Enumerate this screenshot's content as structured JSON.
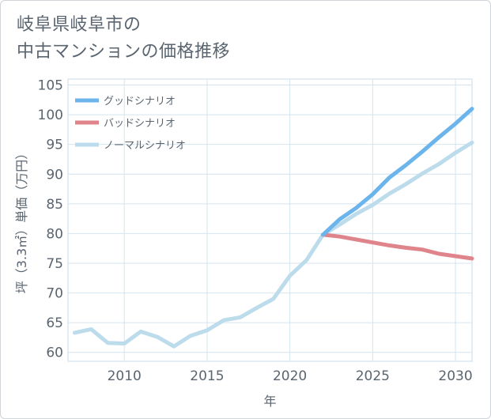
{
  "title_line1": "岐阜県岐阜市の",
  "title_line2": "中古マンションの価格推移",
  "chart_data": {
    "type": "line",
    "xlabel": "年",
    "ylabel": "坪（3.3㎡）単価（万円）",
    "xlim": [
      2006.6,
      2031
    ],
    "ylim": [
      58.5,
      106
    ],
    "xticks": [
      2010,
      2015,
      2020,
      2025,
      2030
    ],
    "yticks": [
      60,
      65,
      70,
      75,
      80,
      85,
      90,
      95,
      100,
      105
    ],
    "grid": true,
    "legend": "top-left",
    "series": [
      {
        "name": "グッドシナリオ",
        "color": "#6cb4ec",
        "x": [
          2022,
          2023,
          2024,
          2025,
          2026,
          2027,
          2028,
          2029,
          2030,
          2031
        ],
        "y": [
          79.8,
          82.4,
          84.3,
          86.6,
          89.4,
          91.5,
          93.8,
          96.2,
          98.5,
          101.0
        ]
      },
      {
        "name": "バッドシナリオ",
        "color": "#e0848c",
        "x": [
          2022,
          2023,
          2024,
          2025,
          2026,
          2027,
          2028,
          2029,
          2030,
          2031
        ],
        "y": [
          79.8,
          79.5,
          79.0,
          78.5,
          78.0,
          77.6,
          77.3,
          76.6,
          76.2,
          75.8
        ]
      },
      {
        "name": "ノーマルシナリオ",
        "color": "#bcdcec",
        "x": [
          2007,
          2008,
          2009,
          2010,
          2011,
          2012,
          2013,
          2014,
          2015,
          2016,
          2017,
          2018,
          2019,
          2020,
          2021,
          2022,
          2023,
          2024,
          2025,
          2026,
          2027,
          2028,
          2029,
          2030,
          2031
        ],
        "y": [
          63.3,
          63.9,
          61.6,
          61.5,
          63.5,
          62.6,
          61.0,
          62.8,
          63.7,
          65.4,
          65.9,
          67.5,
          69.0,
          72.9,
          75.5,
          79.8,
          81.5,
          83.3,
          84.8,
          86.7,
          88.3,
          90.1,
          91.7,
          93.6,
          95.3
        ]
      }
    ]
  }
}
